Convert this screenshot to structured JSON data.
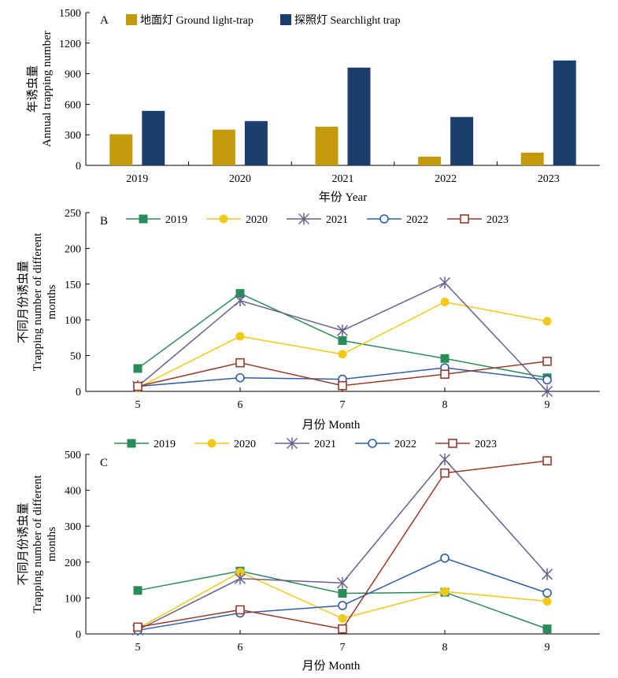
{
  "colors": {
    "ground": "#C49A0A",
    "searchlight": "#1B3E6C",
    "y2019": "#2A8C5A",
    "y2020": "#F2C919",
    "y2021": "#6A5F8E",
    "y2022": "#2E5DA8",
    "y2023": "#9A3A2A"
  },
  "chart_data": [
    {
      "type": "bar",
      "panel": "A",
      "ylabel": "年诱虫量",
      "ylabel_en": "Annual trapping number",
      "xlabel": "年份 Year",
      "categories": [
        "2019",
        "2020",
        "2021",
        "2022",
        "2023"
      ],
      "ylim": [
        0,
        1500
      ],
      "yticks": [
        "0",
        "300",
        "600",
        "900",
        "1200",
        "1500"
      ],
      "legend_position": "top-left",
      "series": [
        {
          "name": "地面灯 Ground light-trap",
          "color_key": "ground",
          "values": [
            305,
            350,
            380,
            85,
            125
          ]
        },
        {
          "name": "探照灯 Searchlight trap",
          "color_key": "searchlight",
          "values": [
            535,
            435,
            960,
            475,
            1030
          ]
        }
      ]
    },
    {
      "type": "line",
      "panel": "B",
      "ylabel": "不同月份诱虫量",
      "ylabel_en": "Trapping number of different months",
      "xlabel": "月份 Month",
      "x": [
        "5",
        "6",
        "7",
        "8",
        "9"
      ],
      "ylim": [
        0,
        250
      ],
      "yticks": [
        "0",
        "50",
        "100",
        "150",
        "200",
        "250"
      ],
      "legend_position": "top",
      "series": [
        {
          "name": "2019",
          "color_key": "y2019",
          "marker": "filled-square",
          "values": [
            32,
            137,
            71,
            46,
            19
          ]
        },
        {
          "name": "2020",
          "color_key": "y2020",
          "marker": "filled-circle",
          "values": [
            5,
            77,
            52,
            125,
            98
          ]
        },
        {
          "name": "2021",
          "color_key": "y2021",
          "marker": "star",
          "values": [
            7,
            127,
            85,
            152,
            0
          ]
        },
        {
          "name": "2022",
          "color_key": "y2022",
          "marker": "open-circle",
          "values": [
            7,
            19,
            17,
            33,
            16
          ]
        },
        {
          "name": "2023",
          "color_key": "y2023",
          "marker": "open-square",
          "values": [
            7,
            40,
            8,
            24,
            42
          ]
        }
      ]
    },
    {
      "type": "line",
      "panel": "C",
      "ylabel": "不同月份诱虫量",
      "ylabel_en": "Trapping number of different months",
      "xlabel": "月份 Month",
      "x": [
        "5",
        "6",
        "7",
        "8",
        "9"
      ],
      "ylim": [
        0,
        500
      ],
      "yticks": [
        "0",
        "100",
        "200",
        "300",
        "400",
        "500"
      ],
      "legend_position": "top",
      "series": [
        {
          "name": "2019",
          "color_key": "y2019",
          "marker": "filled-square",
          "values": [
            121,
            175,
            113,
            116,
            14
          ]
        },
        {
          "name": "2020",
          "color_key": "y2020",
          "marker": "filled-circle",
          "values": [
            15,
            172,
            43,
            118,
            91
          ]
        },
        {
          "name": "2021",
          "color_key": "y2021",
          "marker": "star",
          "values": [
            11,
            154,
            142,
            486,
            166
          ]
        },
        {
          "name": "2022",
          "color_key": "y2022",
          "marker": "open-circle",
          "values": [
            10,
            58,
            79,
            211,
            114
          ]
        },
        {
          "name": "2023",
          "color_key": "y2023",
          "marker": "open-square",
          "values": [
            19,
            67,
            14,
            448,
            482
          ]
        }
      ]
    }
  ]
}
